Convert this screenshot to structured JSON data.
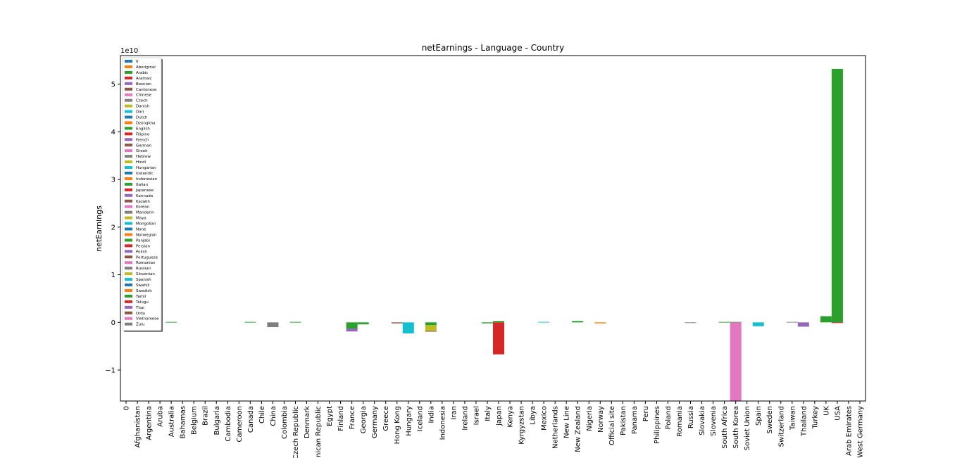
{
  "chart_data": {
    "type": "bar",
    "stacked": true,
    "title": "netEarnings - Language - Country",
    "xlabel": "",
    "ylabel": "netEarnings",
    "y_offset_label": "1e10",
    "ylim": [
      -1.65,
      5.6
    ],
    "y_unit_scale": 10000000000,
    "yticks": [
      -1,
      0,
      1,
      2,
      3,
      4,
      5
    ],
    "ytick_labels": [
      "−1",
      "0",
      "1",
      "2",
      "3",
      "4",
      "5"
    ],
    "grid": false,
    "legend_placement": "top-left",
    "categories": [
      "0",
      "Afghanistan",
      "Argentina",
      "Aruba",
      "Australia",
      "Bahamas",
      "Belgium",
      "Brazil",
      "Bulgaria",
      "Cambodia",
      "Cameroon",
      "Canada",
      "Chile",
      "China",
      "Colombia",
      "Czech Republic",
      "Denmark",
      "Dominican Republic",
      "Egypt",
      "Finland",
      "France",
      "Georgia",
      "Germany",
      "Greece",
      "Hong Kong",
      "Hungary",
      "Iceland",
      "India",
      "Indonesia",
      "Iran",
      "Ireland",
      "Israel",
      "Italy",
      "Japan",
      "Kenya",
      "Kyrgyzstan",
      "Libya",
      "Mexico",
      "Netherlands",
      "New Line",
      "New Zealand",
      "Nigeria",
      "Norway",
      "Official site",
      "Pakistan",
      "Panama",
      "Peru",
      "Philippines",
      "Poland",
      "Romania",
      "Russia",
      "Slovakia",
      "Slovenia",
      "South Africa",
      "South Korea",
      "Soviet Union",
      "Spain",
      "Sweden",
      "Switzerland",
      "Taiwan",
      "Thailand",
      "Turkey",
      "UK",
      "USA",
      "United Arab Emirates",
      "West Germany"
    ],
    "category_labels": [
      "0",
      "Afghanistan",
      "Argentina",
      "Aruba",
      "Australia",
      "Bahamas",
      "Belgium",
      "Brazil",
      "Bulgaria",
      "Cambodia",
      "Cameroon",
      "Canada",
      "Chile",
      "China",
      "Colombia",
      "Czech Republic",
      "Denmark",
      "nican Republic",
      "Egypt",
      "Finland",
      "France",
      "Georgia",
      "Germany",
      "Greece",
      "Hong Kong",
      "Hungary",
      "Iceland",
      "India",
      "Indonesia",
      "Iran",
      "Ireland",
      "Israel",
      "Italy",
      "Japan",
      "Kenya",
      "Kyrgyzstan",
      "Libya",
      "Mexico",
      "Netherlands",
      "New Line",
      "New Zealand",
      "Nigeria",
      "Norway",
      "Official site",
      "Pakistan",
      "Panama",
      "Peru",
      "Philippines",
      "Poland",
      "Romania",
      "Russia",
      "Slovakia",
      "Slovenia",
      "South Africa",
      "South Korea",
      "Soviet Union",
      "Spain",
      "Sweden",
      "Switzerland",
      "Taiwan",
      "Thailand",
      "Turkey",
      "UK",
      "USA",
      "Arab Emirates",
      "West Germany"
    ],
    "legend": [
      "0",
      "Aboriginal",
      "Arabic",
      "Aramaic",
      "Bosnian",
      "Cantonese",
      "Chinese",
      "Czech",
      "Danish",
      "Dari",
      "Dutch",
      "Dzongkha",
      "English",
      "Filipino",
      "French",
      "German",
      "Greek",
      "Hebrew",
      "Hindi",
      "Hungarian",
      "Icelandic",
      "Indonesian",
      "Italian",
      "Japanese",
      "Kannada",
      "Kazakh",
      "Korean",
      "Mandarin",
      "Maya",
      "Mongolian",
      "None",
      "Norwegian",
      "Panjabi",
      "Persian",
      "Polish",
      "Portuguese",
      "Romanian",
      "Russian",
      "Slovenian",
      "Spanish",
      "Swahili",
      "Swedish",
      "Tamil",
      "Telugu",
      "Thai",
      "Urdu",
      "Vietnamese",
      "Zulu"
    ],
    "palette": [
      "#1f77b4",
      "#ff7f0e",
      "#2ca02c",
      "#d62728",
      "#9467bd",
      "#8c564b",
      "#e377c2",
      "#7f7f7f",
      "#bcbd22",
      "#17becf"
    ],
    "segments": [
      {
        "country": "Australia",
        "language": "English",
        "value": 0.01
      },
      {
        "country": "Canada",
        "language": "English",
        "value": 0.01
      },
      {
        "country": "China",
        "language": "Mandarin",
        "value": -0.1
      },
      {
        "country": "Czech Republic",
        "language": "English",
        "value": 0.01
      },
      {
        "country": "France",
        "language": "English",
        "value": -0.13
      },
      {
        "country": "France",
        "language": "French",
        "value": -0.06
      },
      {
        "country": "Georgia",
        "language": "English",
        "value": -0.04
      },
      {
        "country": "Hong Kong",
        "language": "Cantonese",
        "value": -0.02
      },
      {
        "country": "Hungary",
        "language": "Hungarian",
        "value": -0.23
      },
      {
        "country": "India",
        "language": "English",
        "value": -0.06
      },
      {
        "country": "India",
        "language": "Hindi",
        "value": -0.12
      },
      {
        "country": "India",
        "language": "Urdu",
        "value": -0.01
      },
      {
        "country": "Italy",
        "language": "Italian",
        "value": -0.02
      },
      {
        "country": "Japan",
        "language": "English",
        "value": 0.03
      },
      {
        "country": "Japan",
        "language": "Japanese",
        "value": -0.67
      },
      {
        "country": "Mexico",
        "language": "Spanish",
        "value": 0.01
      },
      {
        "country": "New Zealand",
        "language": "English",
        "value": 0.03
      },
      {
        "country": "Norway",
        "language": "Norwegian",
        "value": -0.02
      },
      {
        "country": "Russia",
        "language": "Russian",
        "value": -0.01
      },
      {
        "country": "South Africa",
        "language": "English",
        "value": 0.01
      },
      {
        "country": "South Korea",
        "language": "English",
        "value": 0.01
      },
      {
        "country": "South Korea",
        "language": "Korean",
        "value": -1.65
      },
      {
        "country": "Spain",
        "language": "Spanish",
        "value": -0.08
      },
      {
        "country": "Taiwan",
        "language": "Mandarin",
        "value": 0.01
      },
      {
        "country": "Thailand",
        "language": "Thai",
        "value": -0.09
      },
      {
        "country": "UK",
        "language": "English",
        "value": 0.13
      },
      {
        "country": "USA",
        "language": "English",
        "value": 5.32
      },
      {
        "country": "USA",
        "language": "Filipino",
        "value": -0.01
      }
    ]
  }
}
